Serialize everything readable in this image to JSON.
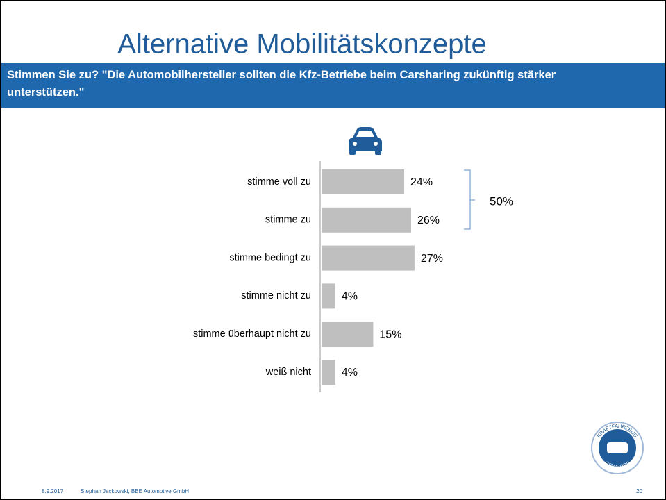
{
  "chart_data": {
    "type": "bar",
    "orientation": "horizontal",
    "title": "Alternative Mobilitätskonzepte",
    "subtitle": "Stimmen Sie zu? \"Die Automobilhersteller sollten die Kfz-Betriebe beim Carsharing zukünftig stärker unterstützen.\"",
    "categories": [
      "stimme voll zu",
      "stimme zu",
      "stimme bedingt zu",
      "stimme nicht zu",
      "stimme überhaupt nicht zu",
      "weiß nicht"
    ],
    "values": [
      24,
      26,
      27,
      4,
      15,
      4
    ],
    "value_labels": [
      "24%",
      "26%",
      "27%",
      "4%",
      "15%",
      "4%"
    ],
    "color": "#bfbfbf",
    "bracket_label": "50%"
  },
  "logo": {
    "top": "KRAFTFAHRZEUG",
    "bottom": "GEWERBE"
  },
  "footer": {
    "date": "8.9.2017",
    "author": "Stephan Jackowski, BBE Automotive GmbH",
    "page": "20"
  }
}
